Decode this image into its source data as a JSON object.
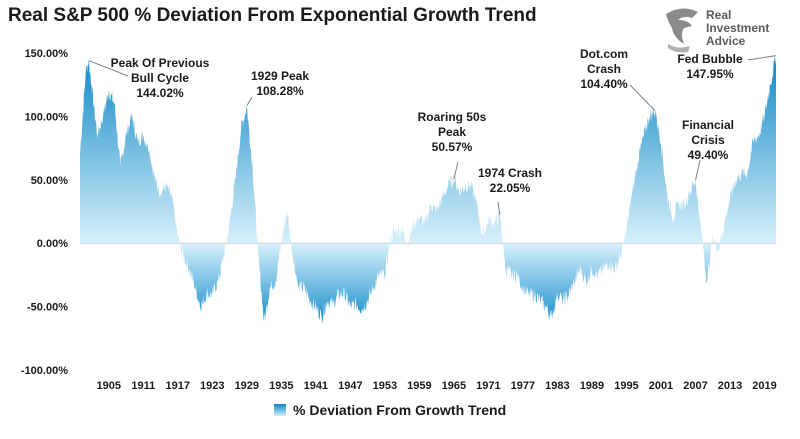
{
  "title": "Real S&P 500 % Deviation From Exponential Growth Trend",
  "logo": {
    "line1": "Real",
    "line2": "Investment",
    "line3": "Advice",
    "icon": "eagle-head-icon"
  },
  "legend": {
    "label": "% Deviation From Growth Trend",
    "icon": "gradient-swatch-icon"
  },
  "colors": {
    "area_top": "#0e86c4",
    "area_bottom": "#d6f0fb",
    "zero_line": "#bfbfbf",
    "leader": "#7f7f7f"
  },
  "chart_data": {
    "type": "area",
    "title": "Real S&P 500 % Deviation From Exponential Growth Trend",
    "xlabel": "",
    "ylabel": "",
    "x_range": [
      1900,
      2021
    ],
    "ylim": [
      -100,
      150
    ],
    "y_ticks": [
      {
        "value": 150,
        "label": "150.00%"
      },
      {
        "value": 100,
        "label": "100.00%"
      },
      {
        "value": 50,
        "label": "50.00%"
      },
      {
        "value": 0,
        "label": "0.00%"
      },
      {
        "value": -50,
        "label": "-50.00%"
      },
      {
        "value": -100,
        "label": "-100.00%"
      }
    ],
    "x_ticks": [
      {
        "value": 1905,
        "label": "1905"
      },
      {
        "value": 1911,
        "label": "1911"
      },
      {
        "value": 1917,
        "label": "1917"
      },
      {
        "value": 1923,
        "label": "1923"
      },
      {
        "value": 1929,
        "label": "1929"
      },
      {
        "value": 1935,
        "label": "1935"
      },
      {
        "value": 1941,
        "label": "1941"
      },
      {
        "value": 1947,
        "label": "1947"
      },
      {
        "value": 1953,
        "label": "1953"
      },
      {
        "value": 1959,
        "label": "1959"
      },
      {
        "value": 1965,
        "label": "1965"
      },
      {
        "value": 1971,
        "label": "1971"
      },
      {
        "value": 1977,
        "label": "1977"
      },
      {
        "value": 1983,
        "label": "1983"
      },
      {
        "value": 1989,
        "label": "1989"
      },
      {
        "value": 1995,
        "label": "1995"
      },
      {
        "value": 2001,
        "label": "2001"
      },
      {
        "value": 2007,
        "label": "2007"
      },
      {
        "value": 2013,
        "label": "2013"
      },
      {
        "value": 2019,
        "label": "2019"
      }
    ],
    "series": [
      {
        "name": "% Deviation From Growth Trend",
        "points": [
          [
            1900,
            70
          ],
          [
            1901,
            135
          ],
          [
            1901.5,
            144.02
          ],
          [
            1902,
            125
          ],
          [
            1903,
            85
          ],
          [
            1904,
            100
          ],
          [
            1905,
            120
          ],
          [
            1906,
            110
          ],
          [
            1907,
            60
          ],
          [
            1908,
            85
          ],
          [
            1909,
            100
          ],
          [
            1910,
            80
          ],
          [
            1911,
            85
          ],
          [
            1912,
            75
          ],
          [
            1913,
            50
          ],
          [
            1914,
            40
          ],
          [
            1915,
            45
          ],
          [
            1916,
            35
          ],
          [
            1917,
            5
          ],
          [
            1918,
            -10
          ],
          [
            1919,
            -20
          ],
          [
            1920,
            -35
          ],
          [
            1921,
            -50
          ],
          [
            1922,
            -40
          ],
          [
            1923,
            -40
          ],
          [
            1924,
            -30
          ],
          [
            1925,
            -10
          ],
          [
            1926,
            15
          ],
          [
            1927,
            50
          ],
          [
            1928,
            90
          ],
          [
            1929,
            108.28
          ],
          [
            1930,
            60
          ],
          [
            1931,
            -10
          ],
          [
            1932,
            -62
          ],
          [
            1933,
            -35
          ],
          [
            1934,
            -30
          ],
          [
            1935,
            0
          ],
          [
            1936,
            25
          ],
          [
            1937,
            -10
          ],
          [
            1938,
            -35
          ],
          [
            1939,
            -35
          ],
          [
            1940,
            -45
          ],
          [
            1941,
            -50
          ],
          [
            1942,
            -58
          ],
          [
            1943,
            -45
          ],
          [
            1944,
            -48
          ],
          [
            1945,
            -40
          ],
          [
            1946,
            -40
          ],
          [
            1947,
            -50
          ],
          [
            1948,
            -48
          ],
          [
            1949,
            -52
          ],
          [
            1950,
            -45
          ],
          [
            1951,
            -35
          ],
          [
            1952,
            -25
          ],
          [
            1953,
            -25
          ],
          [
            1954,
            5
          ],
          [
            1955,
            10
          ],
          [
            1956,
            10
          ],
          [
            1957,
            0
          ],
          [
            1958,
            15
          ],
          [
            1959,
            20
          ],
          [
            1960,
            15
          ],
          [
            1961,
            30
          ],
          [
            1962,
            25
          ],
          [
            1963,
            35
          ],
          [
            1964,
            45
          ],
          [
            1965,
            50.57
          ],
          [
            1966,
            40
          ],
          [
            1967,
            45
          ],
          [
            1968,
            45
          ],
          [
            1969,
            30
          ],
          [
            1970,
            5
          ],
          [
            1971,
            18
          ],
          [
            1972,
            15
          ],
          [
            1973,
            22.05
          ],
          [
            1974,
            -20
          ],
          [
            1975,
            -25
          ],
          [
            1976,
            -25
          ],
          [
            1977,
            -35
          ],
          [
            1978,
            -40
          ],
          [
            1979,
            -40
          ],
          [
            1980,
            -45
          ],
          [
            1981,
            -50
          ],
          [
            1982,
            -58
          ],
          [
            1983,
            -40
          ],
          [
            1984,
            -45
          ],
          [
            1985,
            -40
          ],
          [
            1986,
            -30
          ],
          [
            1987,
            -20
          ],
          [
            1988,
            -30
          ],
          [
            1989,
            -20
          ],
          [
            1990,
            -25
          ],
          [
            1991,
            -20
          ],
          [
            1992,
            -15
          ],
          [
            1993,
            -20
          ],
          [
            1994,
            -10
          ],
          [
            1995,
            10
          ],
          [
            1996,
            40
          ],
          [
            1997,
            65
          ],
          [
            1998,
            85
          ],
          [
            1999,
            100
          ],
          [
            2000,
            104.4
          ],
          [
            2001,
            80
          ],
          [
            2002,
            40
          ],
          [
            2003,
            20
          ],
          [
            2004,
            30
          ],
          [
            2005,
            30
          ],
          [
            2006,
            40
          ],
          [
            2007,
            49.4
          ],
          [
            2008,
            10
          ],
          [
            2009,
            -30
          ],
          [
            2010,
            5
          ],
          [
            2011,
            -5
          ],
          [
            2012,
            15
          ],
          [
            2013,
            35
          ],
          [
            2014,
            50
          ],
          [
            2015,
            55
          ],
          [
            2016,
            55
          ],
          [
            2017,
            80
          ],
          [
            2018,
            85
          ],
          [
            2019,
            100
          ],
          [
            2020,
            125
          ],
          [
            2021,
            147.95
          ]
        ]
      }
    ],
    "annotations": [
      {
        "lines": [
          "Peak Of Previous",
          "Bull Cycle",
          "144.02%"
        ],
        "x": 1901.5,
        "y": 144.02
      },
      {
        "lines": [
          "1929 Peak",
          "108.28%"
        ],
        "x": 1929,
        "y": 108.28
      },
      {
        "lines": [
          "Roaring 50s",
          "Peak",
          "50.57%"
        ],
        "x": 1965,
        "y": 50.57
      },
      {
        "lines": [
          "1974 Crash",
          "22.05%"
        ],
        "x": 1973,
        "y": 22.05
      },
      {
        "lines": [
          "Dot.com",
          "Crash",
          "104.40%"
        ],
        "x": 2000,
        "y": 104.4
      },
      {
        "lines": [
          "Financial",
          "Crisis",
          "49.40%"
        ],
        "x": 2007,
        "y": 49.4
      },
      {
        "lines": [
          "Fed Bubble",
          "147.95%"
        ],
        "x": 2021,
        "y": 147.95
      }
    ]
  }
}
